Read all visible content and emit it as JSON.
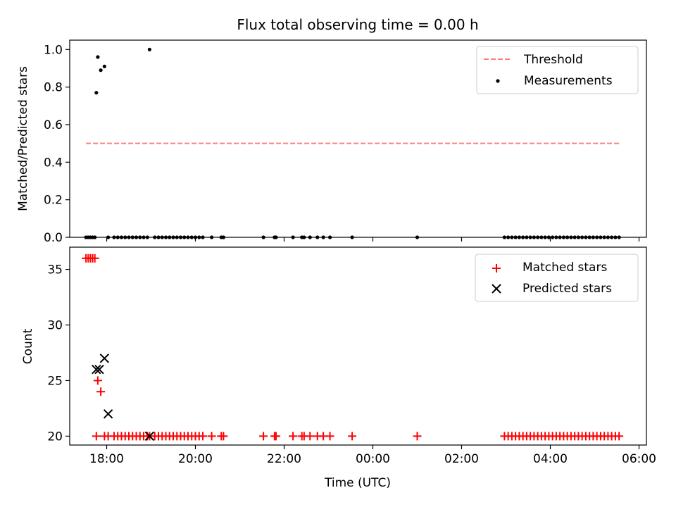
{
  "chart_data": [
    {
      "type": "line+scatter",
      "title": "Flux total observing time = 0.00 h",
      "xlabel": "",
      "ylabel": "Matched/Predicted stars",
      "xlim": [
        "17:10",
        "06:10"
      ],
      "ylim": [
        0,
        1.05
      ],
      "x_ticks": [
        "18:00",
        "20:00",
        "22:00",
        "00:00",
        "02:00",
        "04:00",
        "06:00"
      ],
      "y_ticks": [
        "0.0",
        "0.2",
        "0.4",
        "0.6",
        "0.8",
        "1.0"
      ],
      "legend_position": "top-right",
      "series": [
        {
          "name": "Threshold",
          "kind": "line",
          "style": "dashed",
          "color": "#ff7f7f",
          "x": [
            "17:32",
            "05:35"
          ],
          "y": [
            0.5,
            0.5
          ]
        },
        {
          "name": "Measurements",
          "kind": "scatter",
          "color": "#000000",
          "x": [
            "17:32",
            "17:35",
            "17:38",
            "17:41",
            "17:44",
            "17:46",
            "17:48",
            "17:52",
            "17:57",
            "18:02",
            "18:10",
            "18:15",
            "18:20",
            "18:25",
            "18:30",
            "18:35",
            "18:40",
            "18:45",
            "18:50",
            "18:55",
            "18:58",
            "19:05",
            "19:10",
            "19:15",
            "19:20",
            "19:25",
            "19:30",
            "19:35",
            "19:40",
            "19:45",
            "19:50",
            "19:55",
            "20:00",
            "20:05",
            "20:10",
            "20:22",
            "20:35",
            "20:38",
            "21:32",
            "21:47",
            "21:49",
            "22:12",
            "22:24",
            "22:27",
            "22:35",
            "22:45",
            "22:53",
            "23:02",
            "23:32",
            "01:00",
            "02:58",
            "03:03",
            "03:08",
            "03:13",
            "03:18",
            "03:23",
            "03:28",
            "03:33",
            "03:38",
            "03:43",
            "03:48",
            "03:53",
            "03:58",
            "04:03",
            "04:08",
            "04:13",
            "04:18",
            "04:23",
            "04:28",
            "04:33",
            "04:38",
            "04:43",
            "04:48",
            "04:53",
            "04:58",
            "05:03",
            "05:08",
            "05:13",
            "05:18",
            "05:23",
            "05:28",
            "05:33"
          ],
          "y": [
            0,
            0,
            0,
            0,
            0,
            0.77,
            0.96,
            0.89,
            0.91,
            0,
            0,
            0,
            0,
            0,
            0,
            0,
            0,
            0,
            0,
            0,
            1.0,
            0,
            0,
            0,
            0,
            0,
            0,
            0,
            0,
            0,
            0,
            0,
            0,
            0,
            0,
            0,
            0,
            0,
            0,
            0,
            0,
            0,
            0,
            0,
            0,
            0,
            0,
            0,
            0,
            0,
            0,
            0,
            0,
            0,
            0,
            0,
            0,
            0,
            0,
            0,
            0,
            0,
            0,
            0,
            0,
            0,
            0,
            0,
            0,
            0,
            0,
            0,
            0,
            0,
            0,
            0,
            0,
            0,
            0,
            0,
            0,
            0
          ]
        }
      ]
    },
    {
      "type": "scatter",
      "title": "",
      "xlabel": "Time (UTC)",
      "ylabel": "Count",
      "xlim": [
        "17:10",
        "06:10"
      ],
      "ylim": [
        19.2,
        37
      ],
      "x_ticks": [
        "18:00",
        "20:00",
        "22:00",
        "00:00",
        "02:00",
        "04:00",
        "06:00"
      ],
      "y_ticks": [
        "20",
        "25",
        "30",
        "35"
      ],
      "legend_position": "top-right",
      "series": [
        {
          "name": "Matched stars",
          "kind": "plus",
          "color": "#ff0000",
          "x": [
            "17:32",
            "17:35",
            "17:38",
            "17:41",
            "17:44",
            "17:46",
            "17:48",
            "17:52",
            "17:57",
            "18:02",
            "18:10",
            "18:15",
            "18:20",
            "18:25",
            "18:30",
            "18:35",
            "18:40",
            "18:45",
            "18:50",
            "18:55",
            "18:58",
            "19:05",
            "19:10",
            "19:15",
            "19:20",
            "19:25",
            "19:30",
            "19:35",
            "19:40",
            "19:45",
            "19:50",
            "19:55",
            "20:00",
            "20:05",
            "20:10",
            "20:22",
            "20:35",
            "20:38",
            "21:32",
            "21:47",
            "21:49",
            "22:12",
            "22:24",
            "22:27",
            "22:35",
            "22:45",
            "22:53",
            "23:02",
            "23:32",
            "01:00",
            "02:58",
            "03:03",
            "03:08",
            "03:13",
            "03:18",
            "03:23",
            "03:28",
            "03:33",
            "03:38",
            "03:43",
            "03:48",
            "03:53",
            "03:58",
            "04:03",
            "04:08",
            "04:13",
            "04:18",
            "04:23",
            "04:28",
            "04:33",
            "04:38",
            "04:43",
            "04:48",
            "04:53",
            "04:58",
            "05:03",
            "05:08",
            "05:13",
            "05:18",
            "05:23",
            "05:28",
            "05:33"
          ],
          "y": [
            36,
            36,
            36,
            36,
            36,
            20,
            25,
            24,
            20,
            20,
            20,
            20,
            20,
            20,
            20,
            20,
            20,
            20,
            20,
            20,
            20,
            20,
            20,
            20,
            20,
            20,
            20,
            20,
            20,
            20,
            20,
            20,
            20,
            20,
            20,
            20,
            20,
            20,
            20,
            20,
            20,
            20,
            20,
            20,
            20,
            20,
            20,
            20,
            20,
            20,
            20,
            20,
            20,
            20,
            20,
            20,
            20,
            20,
            20,
            20,
            20,
            20,
            20,
            20,
            20,
            20,
            20,
            20,
            20,
            20,
            20,
            20,
            20,
            20,
            20,
            20,
            20,
            20,
            20,
            20,
            20,
            20
          ]
        },
        {
          "name": "Predicted stars",
          "kind": "x",
          "color": "#000000",
          "x": [
            "17:46",
            "17:50",
            "17:57",
            "18:02",
            "18:58"
          ],
          "y": [
            26,
            26,
            27,
            22,
            20
          ]
        }
      ]
    }
  ]
}
